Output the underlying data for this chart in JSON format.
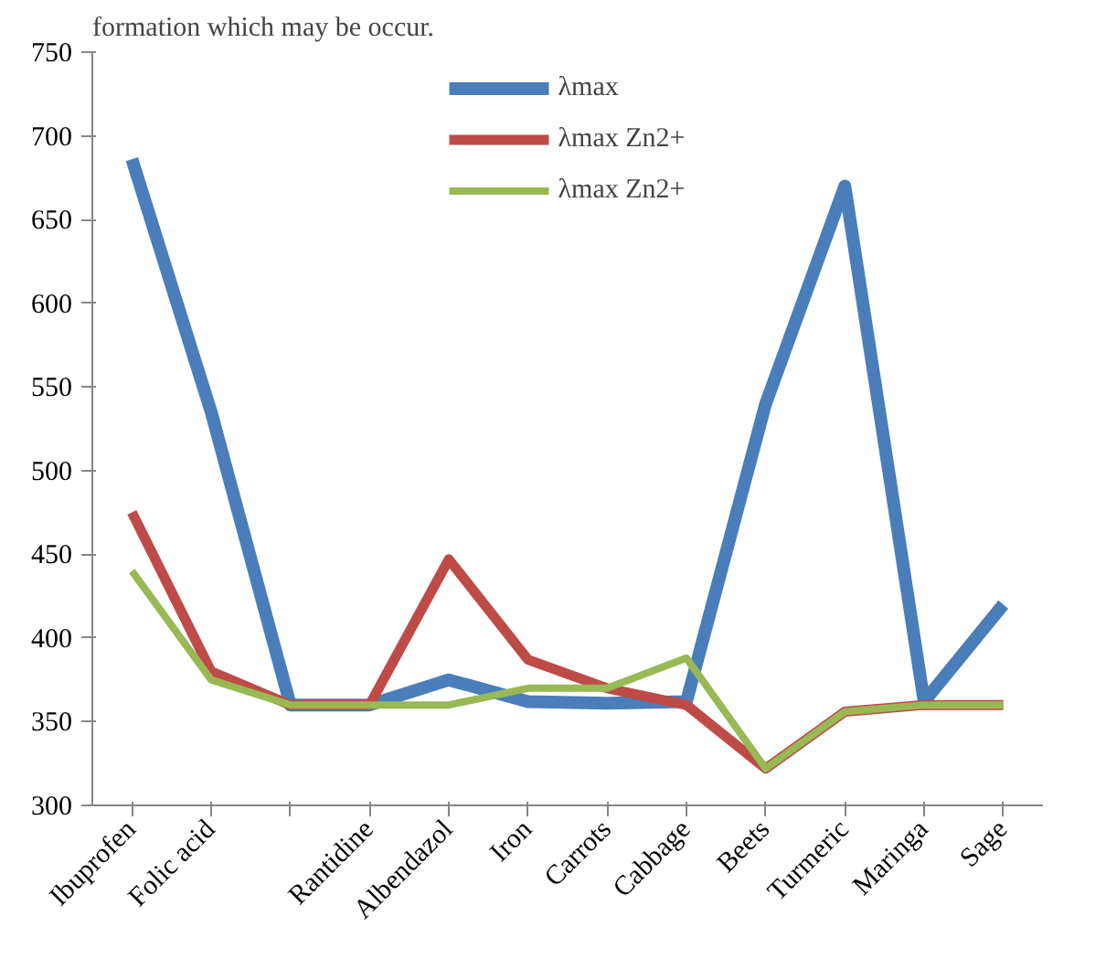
{
  "chart_data": {
    "type": "line",
    "annotations": [
      "formation which may be occur."
    ],
    "categories": [
      "Ibuprofen",
      "Folic acid",
      null,
      "Rantidine",
      "Albendazol",
      "Iron",
      "Carrots",
      "Cabbage",
      "Beets",
      "Turmeric",
      "Maringa",
      "Sage"
    ],
    "series": [
      {
        "name": "λmax",
        "color": "#4a7ebb",
        "values": [
          686,
          535,
          360,
          360,
          375,
          362,
          361,
          362,
          540,
          670,
          362,
          420
        ]
      },
      {
        "name": "λmax Zn2+",
        "color": "#be4b48",
        "values": [
          475,
          380,
          360,
          360,
          447,
          387,
          370,
          360,
          322,
          356,
          360,
          360
        ]
      },
      {
        "name": "λmax Zn2+",
        "color": "#98b954",
        "values": [
          440,
          375,
          360,
          360,
          360,
          370,
          370,
          388,
          322,
          356,
          360,
          360
        ]
      }
    ],
    "ylim": [
      300,
      750
    ],
    "yticks": [
      300,
      350,
      400,
      450,
      500,
      550,
      600,
      650,
      700,
      750
    ],
    "grid": false,
    "legend": "top",
    "marker": "none",
    "line_style": "solid"
  }
}
